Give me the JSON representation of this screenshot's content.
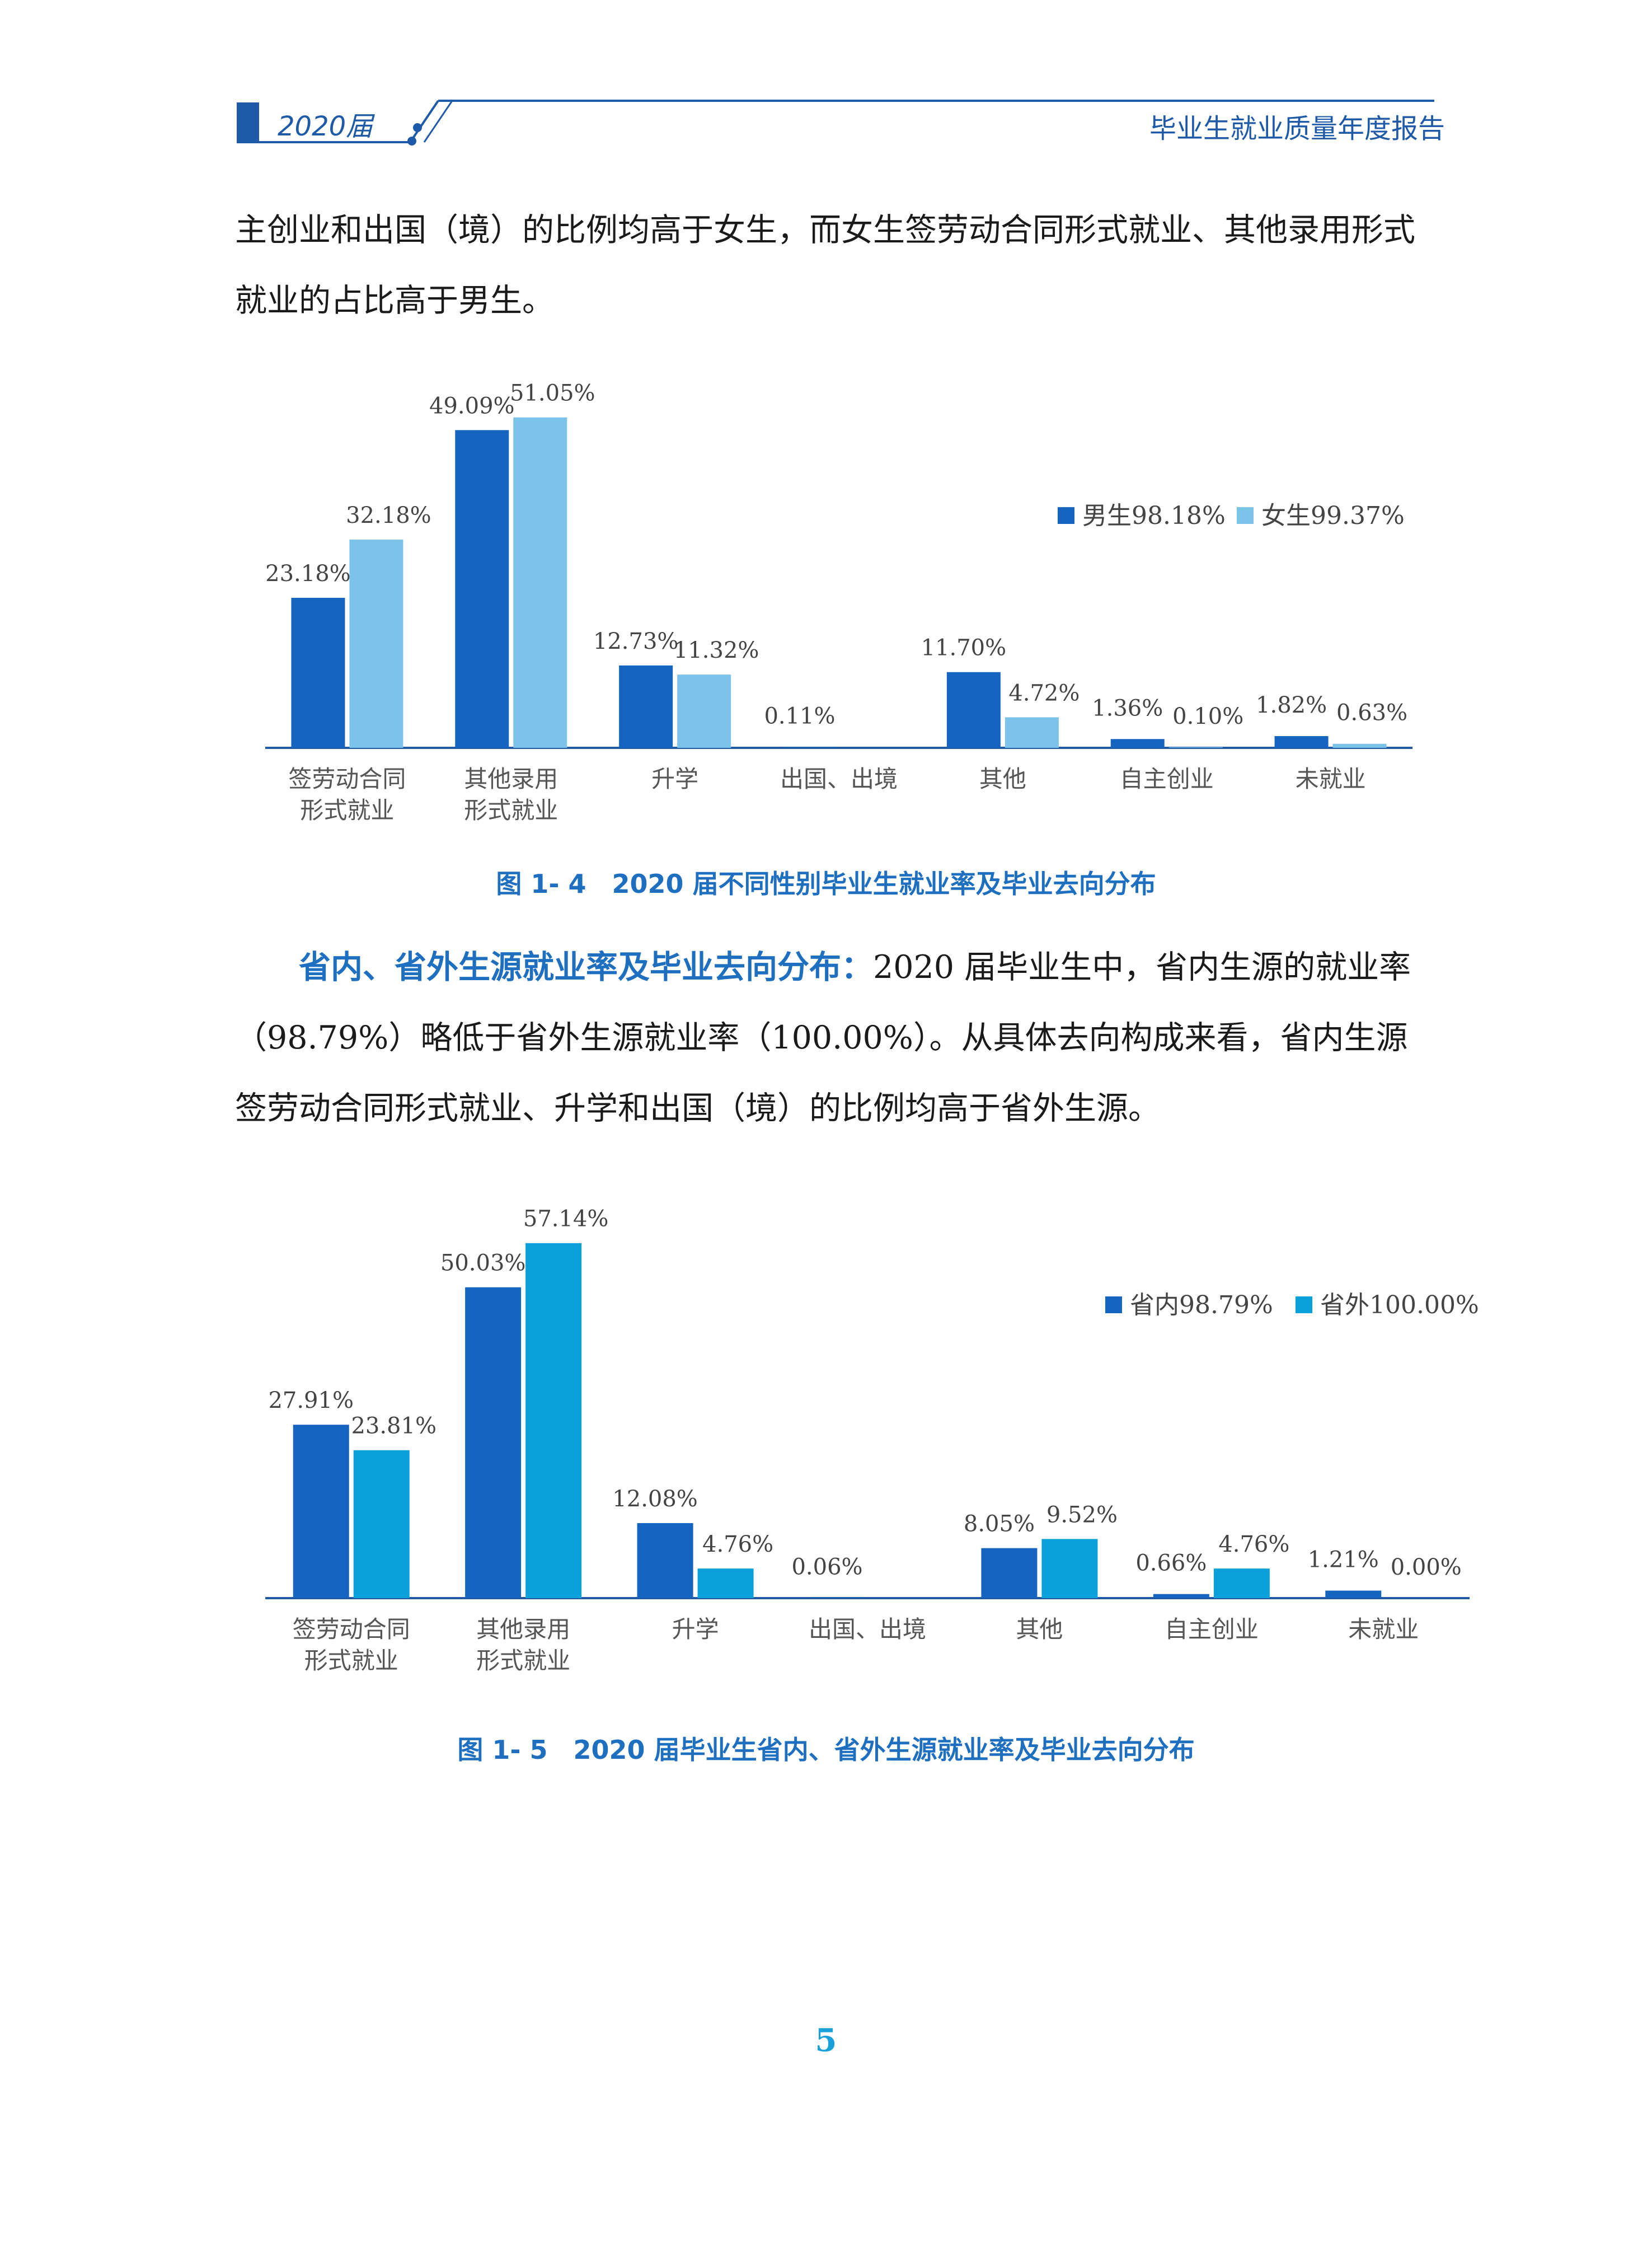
{
  "header": {
    "year": "2020届",
    "title": "毕业生就业质量年度报告",
    "accent_color": "#1f5aa8"
  },
  "paragraph1": "主创业和出国（境）的比例均高于女生，而女生签劳动合同形式就业、其他录用形式就业的占比高于男生。",
  "paragraph2": {
    "lead": "省内、省外生源就业率及毕业去向分布：",
    "text": "2020 届毕业生中，省内生源的就业率（98.79%）略低于省外生源就业率（100.00%）。从具体去向构成来看，省内生源签劳动合同形式就业、升学和出国（境）的比例均高于省外生源。"
  },
  "captions": {
    "fig4": "图 1- 4　2020 届不同性别毕业生就业率及毕业去向分布",
    "fig5": "图 1- 5　2020 届毕业生省内、省外生源就业率及毕业去向分布"
  },
  "page_number": "5",
  "chart_data": [
    {
      "type": "bar",
      "categories": [
        [
          "签劳动合同",
          "形式就业"
        ],
        [
          "其他录用",
          "形式就业"
        ],
        [
          "升学"
        ],
        [
          "出国、出境"
        ],
        [
          "其他"
        ],
        [
          "自主创业"
        ],
        [
          "未就业"
        ]
      ],
      "series": [
        {
          "name": "男生98.18%",
          "color": "#1565c0",
          "values": [
            23.18,
            49.09,
            12.73,
            0.11,
            11.7,
            1.36,
            1.82
          ],
          "labels": [
            "23.18%",
            "49.09%",
            "12.73%",
            "0.11%",
            "11.70%",
            "1.36%",
            "1.82%"
          ]
        },
        {
          "name": "女生99.37%",
          "color": "#7cc3ea",
          "values": [
            32.18,
            51.05,
            11.32,
            0,
            4.72,
            0.1,
            0.63
          ],
          "labels": [
            "32.18%",
            "51.05%",
            "11.32%",
            "",
            "4.72%",
            "0.10%",
            "0.63%"
          ]
        }
      ],
      "ylim": [
        0,
        55
      ],
      "legend_position": "top-right"
    },
    {
      "type": "bar",
      "categories": [
        [
          "签劳动合同",
          "形式就业"
        ],
        [
          "其他录用",
          "形式就业"
        ],
        [
          "升学"
        ],
        [
          "出国、出境"
        ],
        [
          "其他"
        ],
        [
          "自主创业"
        ],
        [
          "未就业"
        ]
      ],
      "series": [
        {
          "name": "省内98.79%",
          "color": "#1565c0",
          "values": [
            27.91,
            50.03,
            12.08,
            0.06,
            8.05,
            0.66,
            1.21
          ],
          "labels": [
            "27.91%",
            "50.03%",
            "12.08%",
            "0.06%",
            "8.05%",
            "0.66%",
            "1.21%"
          ]
        },
        {
          "name": "省外100.00%",
          "color": "#0aa0dc",
          "values": [
            23.81,
            57.14,
            4.76,
            0,
            9.52,
            4.76,
            0.0
          ],
          "labels": [
            "23.81%",
            "57.14%",
            "4.76%",
            "",
            "9.52%",
            "4.76%",
            "0.00%"
          ]
        }
      ],
      "ylim": [
        0,
        60
      ],
      "legend_position": "top-right"
    }
  ]
}
